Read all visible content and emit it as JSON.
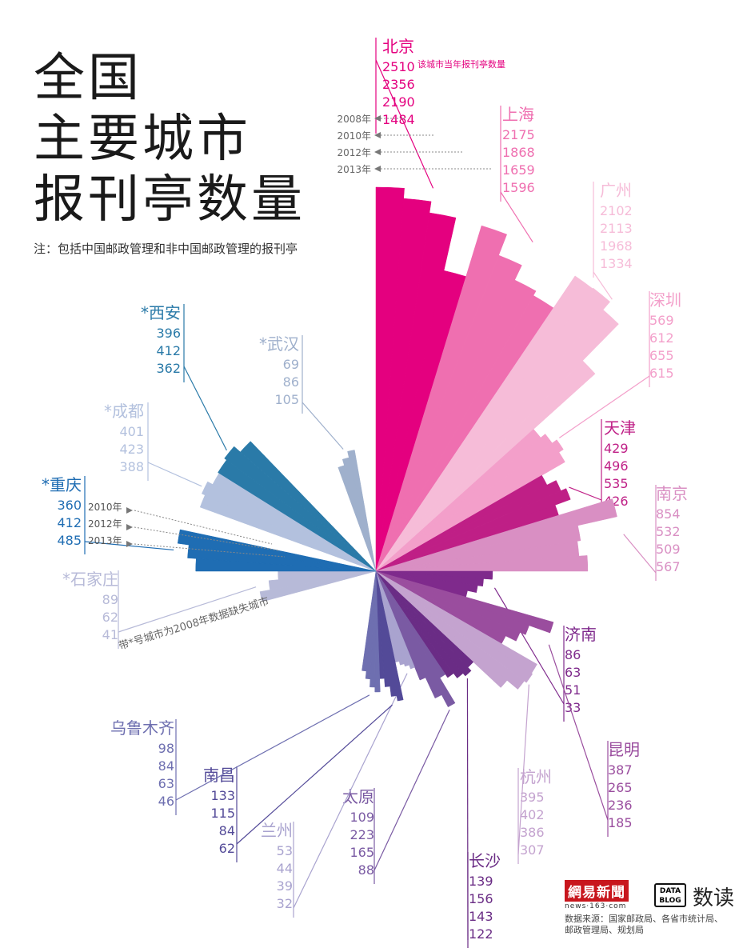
{
  "title": {
    "lines": [
      "全国",
      "主要城市",
      "报刊亭数量"
    ],
    "note": "注：包括中国邮政管理和非中国邮政管理的报刊亭"
  },
  "legend_note": "该城市当年报刊亭数量",
  "years_4": [
    "2008年",
    "2010年",
    "2012年",
    "2013年"
  ],
  "years_3": [
    "2010年",
    "2012年",
    "2013年"
  ],
  "star_note": "带*号城市为2008年数据缺失城市",
  "source": {
    "logo_163": "網易新聞",
    "logo_163_url": "news·163·com",
    "logo_datablog": "DATA BLOG",
    "logo_shudu": "数读",
    "lines": [
      "数据来源：国家邮政局、各省市统计局、",
      "邮政管理局、规划局"
    ]
  },
  "colors": {
    "beijing": "#e4007f",
    "shanghai": "#ef6fb0",
    "guangzhou": "#f6bcd8",
    "shenzhen": "#f39fca",
    "tianjin": "#bf1f86",
    "nanjing": "#d98fc3",
    "jinan": "#7f2a8c",
    "kunming": "#9a4d9e",
    "hangzhou": "#c4a3cf",
    "changsha": "#6a2c85",
    "taiyuan": "#7a5aa3",
    "lanzhou": "#a9a3cf",
    "nanchang": "#534a98",
    "urumqi": "#6e6fb0",
    "shijiazhuang": "#b7bad8",
    "chongqing": "#1f6db3",
    "chengdu": "#b3c1de",
    "xian": "#2a7aa8",
    "wuhan": "#9fb0cc"
  },
  "chart_data": {
    "type": "radial_bar",
    "unit": "该城市当年报刊亭数量",
    "years": [
      "2008年",
      "2010年",
      "2012年",
      "2013年"
    ],
    "cities": [
      {
        "name": "北京",
        "star": false,
        "values": [
          2510,
          2356,
          2190,
          1484
        ]
      },
      {
        "name": "上海",
        "star": false,
        "values": [
          2175,
          1868,
          1659,
          1596
        ]
      },
      {
        "name": "广州",
        "star": false,
        "values": [
          2102,
          2113,
          1968,
          1334
        ]
      },
      {
        "name": "深圳",
        "star": false,
        "values": [
          569,
          612,
          655,
          615
        ]
      },
      {
        "name": "天津",
        "star": false,
        "values": [
          429,
          496,
          535,
          426
        ]
      },
      {
        "name": "南京",
        "star": false,
        "values": [
          854,
          532,
          509,
          567
        ]
      },
      {
        "name": "济南",
        "star": false,
        "values": [
          86,
          63,
          51,
          33
        ]
      },
      {
        "name": "昆明",
        "star": false,
        "values": [
          387,
          265,
          236,
          185
        ]
      },
      {
        "name": "杭州",
        "star": false,
        "values": [
          395,
          402,
          386,
          307
        ]
      },
      {
        "name": "长沙",
        "star": false,
        "values": [
          139,
          156,
          143,
          122
        ]
      },
      {
        "name": "太原",
        "star": false,
        "values": [
          109,
          223,
          165,
          88
        ]
      },
      {
        "name": "兰州",
        "star": false,
        "values": [
          53,
          44,
          39,
          32
        ]
      },
      {
        "name": "南昌",
        "star": false,
        "values": [
          133,
          115,
          84,
          62
        ]
      },
      {
        "name": "乌鲁木齐",
        "star": false,
        "values": [
          98,
          84,
          63,
          46
        ]
      },
      {
        "name": "石家庄",
        "star": true,
        "values": [
          89,
          62,
          41
        ]
      },
      {
        "name": "重庆",
        "star": true,
        "values": [
          360,
          412,
          485
        ]
      },
      {
        "name": "成都",
        "star": true,
        "values": [
          401,
          423,
          388
        ]
      },
      {
        "name": "西安",
        "star": true,
        "values": [
          396,
          412,
          362
        ]
      },
      {
        "name": "武汉",
        "star": true,
        "values": [
          69,
          86,
          105
        ]
      }
    ]
  }
}
